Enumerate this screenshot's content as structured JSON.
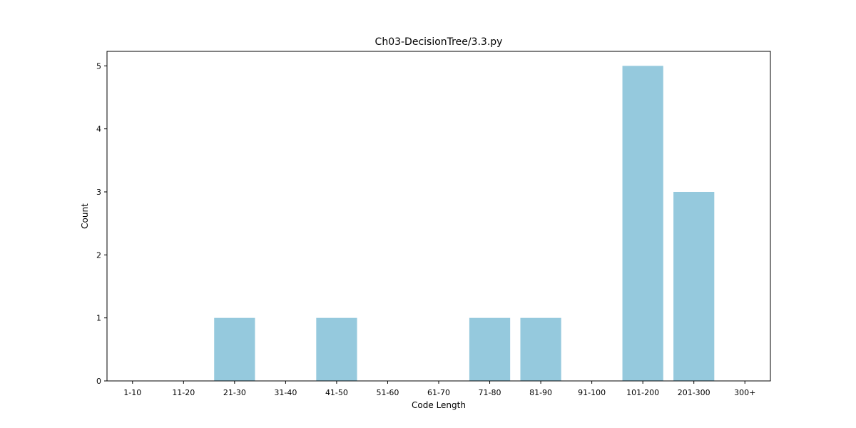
{
  "chart_data": {
    "type": "bar",
    "title": "Ch03-DecisionTree/3.3.py",
    "xlabel": "Code Length",
    "ylabel": "Count",
    "categories": [
      "1-10",
      "11-20",
      "21-30",
      "31-40",
      "41-50",
      "51-60",
      "61-70",
      "71-80",
      "81-90",
      "91-100",
      "101-200",
      "201-300",
      "300+"
    ],
    "values": [
      0,
      0,
      1,
      0,
      1,
      0,
      0,
      1,
      1,
      0,
      5,
      3,
      0
    ],
    "ylim": [
      0,
      5.23
    ],
    "yticks": [
      0,
      1,
      2,
      3,
      4,
      5
    ],
    "grid": false,
    "bar_color": "#95c9dd",
    "axis_color": "#000000"
  }
}
